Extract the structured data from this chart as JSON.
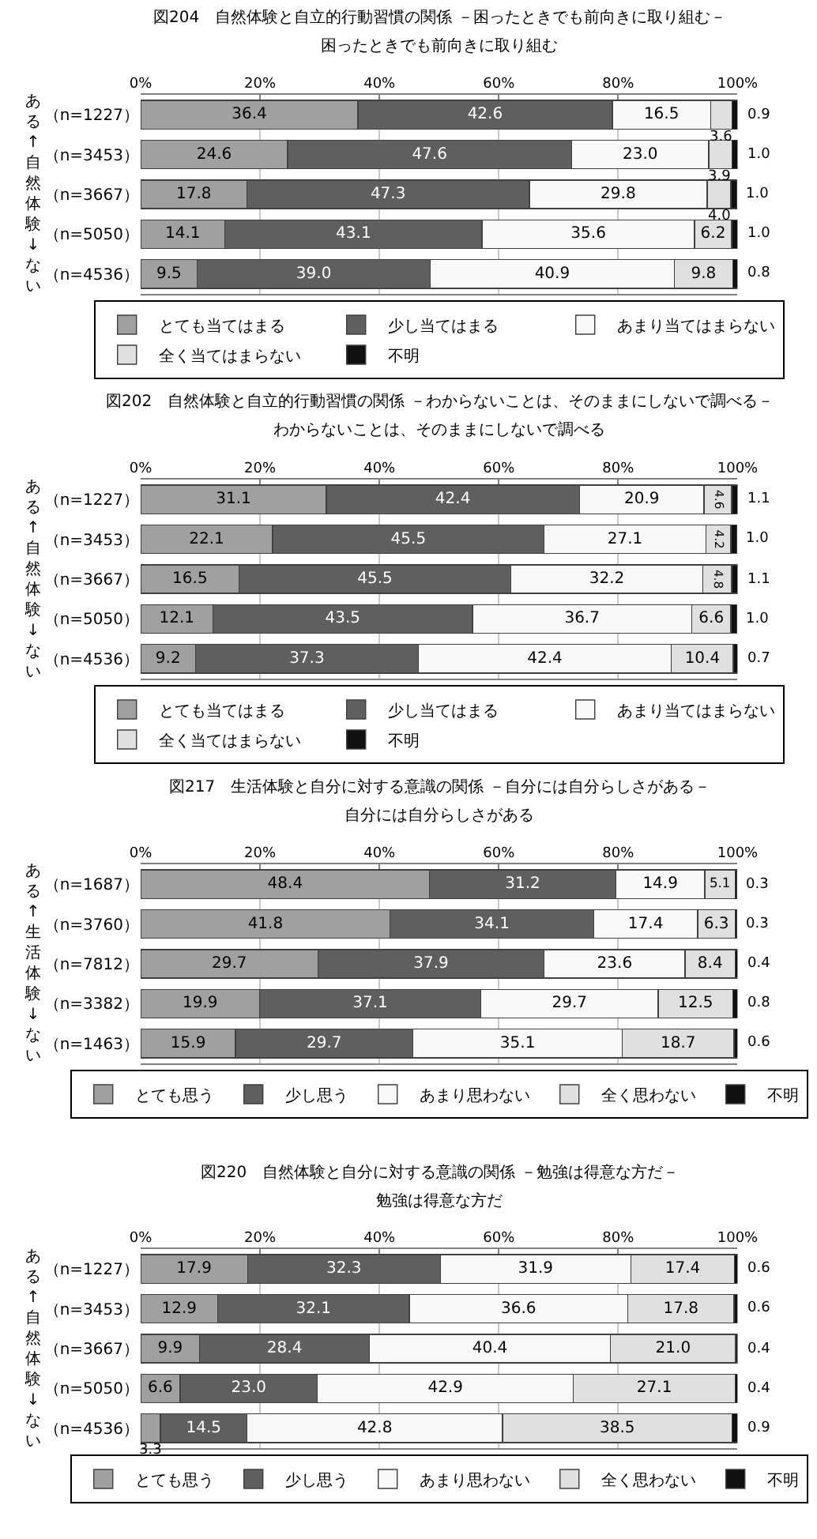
{
  "chart_data": [
    {
      "type": "bar",
      "orientation": "horizontal",
      "stacked": true,
      "grid": "x",
      "legend": "bottom",
      "title": "図204　自然体験と自立的行動習慣の関係 －困ったときでも前向きに取り組む－",
      "subtitle": "困ったときでも前向きに取り組む",
      "ylabel": "ある↑自然体験↓ない",
      "categories": [
        "（n=1227）",
        "（n=3453）",
        "（n=3667）",
        "（n=5050）",
        "（n=4536）"
      ],
      "xlim": [
        0,
        100
      ],
      "xticks": [
        {
          "value": 0,
          "label": "0%"
        },
        {
          "value": 20,
          "label": "20%"
        },
        {
          "value": 40,
          "label": "40%"
        },
        {
          "value": 60,
          "label": "60%"
        },
        {
          "value": 80,
          "label": "80%"
        },
        {
          "value": 100,
          "label": "100%"
        }
      ],
      "series": [
        {
          "name": "とても当てはまる",
          "color": "#a0a0a0",
          "values": [
            36.4,
            24.6,
            17.8,
            14.1,
            9.5
          ],
          "value_labels": [
            "36.4",
            "24.6",
            "17.8",
            "14.1",
            "9.5"
          ]
        },
        {
          "name": "少し当てはまる",
          "color": "#5f5f5f",
          "values": [
            42.6,
            47.6,
            47.3,
            43.1,
            39.0
          ],
          "value_labels": [
            "42.6",
            "47.6",
            "47.3",
            "43.1",
            "39.0"
          ]
        },
        {
          "name": "あまり当てはまらない",
          "color": "#f8f8f8",
          "values": [
            16.5,
            23.0,
            29.8,
            35.6,
            40.9
          ],
          "value_labels": [
            "16.5",
            "23.0",
            "29.8",
            "35.6",
            "40.9"
          ]
        },
        {
          "name": "全く当てはまらない",
          "color": "#e0e0e0",
          "values": [
            3.6,
            3.9,
            4.0,
            6.2,
            9.8
          ],
          "value_labels": [
            "3.6",
            "3.9",
            "4.0",
            "6.2",
            "9.8"
          ]
        },
        {
          "name": "不明",
          "color": "#101010",
          "values": [
            0.9,
            1.0,
            1.0,
            1.0,
            0.8
          ],
          "value_labels": [
            "0.9",
            "1.0",
            "1.0",
            "1.0",
            "0.8"
          ]
        }
      ]
    },
    {
      "type": "bar",
      "orientation": "horizontal",
      "stacked": true,
      "grid": "x",
      "legend": "bottom",
      "title": "図202　自然体験と自立的行動習慣の関係 －わからないことは、そのままにしないで調べる－",
      "subtitle": "わからないことは、そのままにしないで調べる",
      "ylabel": "ある↑自然体験↓ない",
      "categories": [
        "（n=1227）",
        "（n=3453）",
        "（n=3667）",
        "（n=5050）",
        "（n=4536）"
      ],
      "xlim": [
        0,
        100
      ],
      "xticks": [
        {
          "value": 0,
          "label": "0%"
        },
        {
          "value": 20,
          "label": "20%"
        },
        {
          "value": 40,
          "label": "40%"
        },
        {
          "value": 60,
          "label": "60%"
        },
        {
          "value": 80,
          "label": "80%"
        },
        {
          "value": 100,
          "label": "100%"
        }
      ],
      "series": [
        {
          "name": "とても当てはまる",
          "color": "#a0a0a0",
          "values": [
            31.1,
            22.1,
            16.5,
            12.1,
            9.2
          ],
          "value_labels": [
            "31.1",
            "22.1",
            "16.5",
            "12.1",
            "9.2"
          ]
        },
        {
          "name": "少し当てはまる",
          "color": "#5f5f5f",
          "values": [
            42.4,
            45.5,
            45.5,
            43.5,
            37.3
          ],
          "value_labels": [
            "42.4",
            "45.5",
            "45.5",
            "43.5",
            "37.3"
          ]
        },
        {
          "name": "あまり当てはまらない",
          "color": "#f8f8f8",
          "values": [
            20.9,
            27.1,
            32.2,
            36.7,
            42.4
          ],
          "value_labels": [
            "20.9",
            "27.1",
            "32.2",
            "36.7",
            "42.4"
          ]
        },
        {
          "name": "全く当てはまらない",
          "color": "#e0e0e0",
          "values": [
            4.6,
            4.2,
            4.8,
            6.6,
            10.4
          ],
          "value_labels": [
            "4.6",
            "4.2",
            "4.8",
            "6.6",
            "10.4"
          ]
        },
        {
          "name": "不明",
          "color": "#101010",
          "values": [
            1.1,
            1.0,
            1.1,
            1.0,
            0.7
          ],
          "value_labels": [
            "1.1",
            "1.0",
            "1.1",
            "1.0",
            "0.7"
          ]
        }
      ]
    },
    {
      "type": "bar",
      "orientation": "horizontal",
      "stacked": true,
      "grid": "x",
      "legend": "bottom",
      "title": "図217　生活体験と自分に対する意識の関係 －自分には自分らしさがある－",
      "subtitle": "自分には自分らしさがある",
      "ylabel": "ある↑生活体験↓ない",
      "categories": [
        "（n=1687）",
        "（n=3760）",
        "（n=7812）",
        "（n=3382）",
        "（n=1463）"
      ],
      "xlim": [
        0,
        100
      ],
      "xticks": [
        {
          "value": 0,
          "label": "0%"
        },
        {
          "value": 20,
          "label": "20%"
        },
        {
          "value": 40,
          "label": "40%"
        },
        {
          "value": 60,
          "label": "60%"
        },
        {
          "value": 80,
          "label": "80%"
        },
        {
          "value": 100,
          "label": "100%"
        }
      ],
      "series": [
        {
          "name": "とても思う",
          "color": "#a0a0a0",
          "values": [
            48.4,
            41.8,
            29.7,
            19.9,
            15.9
          ],
          "value_labels": [
            "48.4",
            "41.8",
            "29.7",
            "19.9",
            "15.9"
          ]
        },
        {
          "name": "少し思う",
          "color": "#5f5f5f",
          "values": [
            31.2,
            34.1,
            37.9,
            37.1,
            29.7
          ],
          "value_labels": [
            "31.2",
            "34.1",
            "37.9",
            "37.1",
            "29.7"
          ]
        },
        {
          "name": "あまり思わない",
          "color": "#f8f8f8",
          "values": [
            14.9,
            17.4,
            23.6,
            29.7,
            35.1
          ],
          "value_labels": [
            "14.9",
            "17.4",
            "23.6",
            "29.7",
            "35.1"
          ]
        },
        {
          "name": "全く思わない",
          "color": "#e0e0e0",
          "values": [
            5.1,
            6.3,
            8.4,
            12.5,
            18.7
          ],
          "value_labels": [
            "5.1",
            "6.3",
            "8.4",
            "12.5",
            "18.7"
          ]
        },
        {
          "name": "不明",
          "color": "#101010",
          "values": [
            0.3,
            0.3,
            0.4,
            0.8,
            0.6
          ],
          "value_labels": [
            "0.3",
            "0.3",
            "0.4",
            "0.8",
            "0.6"
          ]
        }
      ]
    },
    {
      "type": "bar",
      "orientation": "horizontal",
      "stacked": true,
      "grid": "x",
      "legend": "bottom",
      "title": "図220　自然体験と自分に対する意識の関係 －勉強は得意な方だ－",
      "subtitle": "勉強は得意な方だ",
      "ylabel": "ある↑自然体験↓ない",
      "categories": [
        "（n=1227）",
        "（n=3453）",
        "（n=3667）",
        "（n=5050）",
        "（n=4536）"
      ],
      "xlim": [
        0,
        100
      ],
      "xticks": [
        {
          "value": 0,
          "label": "0%"
        },
        {
          "value": 20,
          "label": "20%"
        },
        {
          "value": 40,
          "label": "40%"
        },
        {
          "value": 60,
          "label": "60%"
        },
        {
          "value": 80,
          "label": "80%"
        },
        {
          "value": 100,
          "label": "100%"
        }
      ],
      "series": [
        {
          "name": "とても思う",
          "color": "#a0a0a0",
          "values": [
            17.9,
            12.9,
            9.9,
            6.6,
            3.3
          ],
          "value_labels": [
            "17.9",
            "12.9",
            "9.9",
            "6.6",
            "3.3"
          ]
        },
        {
          "name": "少し思う",
          "color": "#5f5f5f",
          "values": [
            32.3,
            32.1,
            28.4,
            23.0,
            14.5
          ],
          "value_labels": [
            "32.3",
            "32.1",
            "28.4",
            "23.0",
            "14.5"
          ]
        },
        {
          "name": "あまり思わない",
          "color": "#f8f8f8",
          "values": [
            31.9,
            36.6,
            40.4,
            42.9,
            42.8
          ],
          "value_labels": [
            "31.9",
            "36.6",
            "40.4",
            "42.9",
            "42.8"
          ]
        },
        {
          "name": "全く思わない",
          "color": "#e0e0e0",
          "values": [
            17.4,
            17.8,
            21.0,
            27.1,
            38.5
          ],
          "value_labels": [
            "17.4",
            "17.8",
            "21.0",
            "27.1",
            "38.5"
          ]
        },
        {
          "name": "不明",
          "color": "#101010",
          "values": [
            0.6,
            0.6,
            0.4,
            0.4,
            0.9
          ],
          "value_labels": [
            "0.6",
            "0.6",
            "0.4",
            "0.4",
            "0.9"
          ]
        }
      ]
    }
  ]
}
